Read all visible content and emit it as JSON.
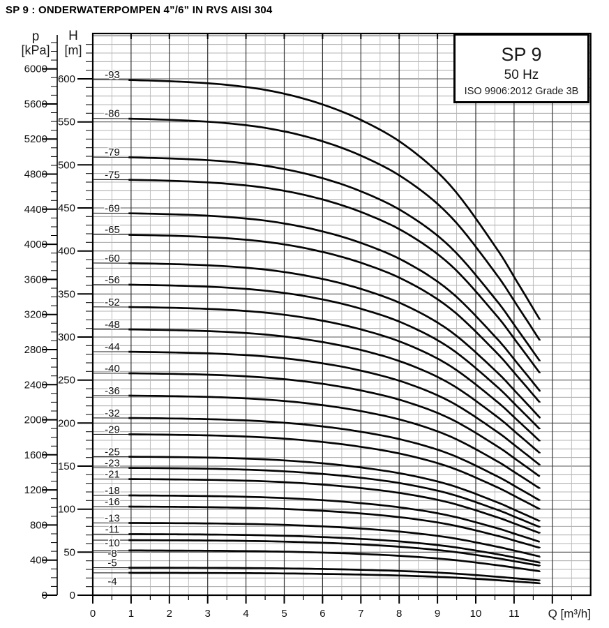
{
  "page_title": "SP 9 : ONDERWATERPOMPEN 4”/6” IN RVS AISI 304",
  "legend": {
    "model": "SP 9",
    "frequency": "50 Hz",
    "standard": "ISO 9906:2012 Grade 3B"
  },
  "axes": {
    "pressure": {
      "symbol": "p",
      "unit": "[kPa]",
      "labeled_ticks": [
        6000,
        5600,
        5200,
        4800,
        4400,
        4000,
        3600,
        3200,
        2800,
        2400,
        2000,
        1600,
        1200,
        800,
        400,
        0
      ],
      "minor_step_kpa": 100
    },
    "head": {
      "symbol": "H",
      "unit": "[m]",
      "labeled_ticks": [
        600,
        550,
        500,
        450,
        400,
        350,
        300,
        250,
        200,
        150,
        100,
        50,
        0
      ],
      "minor_step_m": 10
    },
    "flow": {
      "label": "Q [m³/h]",
      "labeled_ticks": [
        0,
        1,
        2,
        3,
        4,
        5,
        6,
        7,
        8,
        9,
        10,
        11
      ],
      "minor_step": 0.5,
      "axis_max": 13
    }
  },
  "chart_data": {
    "type": "line",
    "title": "SP 9 pump performance curves, 50 Hz, ISO 9906:2012 Grade 3B",
    "xlabel": "Q [m³/h]",
    "ylabel_left_outer": "p [kPa]",
    "ylabel_left_inner": "H [m]",
    "x_range": [
      0,
      13
    ],
    "h_range_m": [
      0,
      652
    ],
    "grid": {
      "h_minor_step_m": 10,
      "h_major_step_m": 50,
      "v_minor_step": 0.5,
      "v_major_step": 1,
      "grid_on": true
    },
    "legend_position": "top-right",
    "curve_color": "#050505",
    "kpa_per_meter_head": 9.81,
    "thin_segment_q_end_m3h": 0.95,
    "curve_shape_normalized": {
      "q_rel": [
        0,
        0.08,
        0.2,
        0.3,
        0.4,
        0.5,
        0.6,
        0.7,
        0.8,
        0.9,
        0.95,
        1.0
      ],
      "head_rel": [
        1.0,
        0.9995,
        0.996,
        0.99,
        0.978,
        0.956,
        0.922,
        0.872,
        0.795,
        0.677,
        0.607,
        0.535
      ]
    },
    "series": [
      {
        "label": "-93",
        "stages": 93,
        "shutoff_head_m": 599,
        "end_q_m3h": 11.67,
        "end_head_m": 320
      },
      {
        "label": "-86",
        "stages": 86,
        "shutoff_head_m": 554,
        "end_q_m3h": 11.67,
        "end_head_m": 296
      },
      {
        "label": "-79",
        "stages": 79,
        "shutoff_head_m": 509,
        "end_q_m3h": 11.67,
        "end_head_m": 272
      },
      {
        "label": "-75",
        "stages": 75,
        "shutoff_head_m": 483,
        "end_q_m3h": 11.67,
        "end_head_m": 258
      },
      {
        "label": "-69",
        "stages": 69,
        "shutoff_head_m": 444,
        "end_q_m3h": 11.67,
        "end_head_m": 238
      },
      {
        "label": "-65",
        "stages": 65,
        "shutoff_head_m": 419,
        "end_q_m3h": 11.67,
        "end_head_m": 224
      },
      {
        "label": "-60",
        "stages": 60,
        "shutoff_head_m": 386,
        "end_q_m3h": 11.67,
        "end_head_m": 207
      },
      {
        "label": "-56",
        "stages": 56,
        "shutoff_head_m": 361,
        "end_q_m3h": 11.67,
        "end_head_m": 193
      },
      {
        "label": "-52",
        "stages": 52,
        "shutoff_head_m": 335,
        "end_q_m3h": 11.67,
        "end_head_m": 179
      },
      {
        "label": "-48",
        "stages": 48,
        "shutoff_head_m": 309,
        "end_q_m3h": 11.67,
        "end_head_m": 165
      },
      {
        "label": "-44",
        "stages": 44,
        "shutoff_head_m": 283,
        "end_q_m3h": 11.67,
        "end_head_m": 151
      },
      {
        "label": "-40",
        "stages": 40,
        "shutoff_head_m": 258,
        "end_q_m3h": 11.67,
        "end_head_m": 138
      },
      {
        "label": "-36",
        "stages": 36,
        "shutoff_head_m": 232,
        "end_q_m3h": 11.67,
        "end_head_m": 124
      },
      {
        "label": "-32",
        "stages": 32,
        "shutoff_head_m": 206,
        "end_q_m3h": 11.67,
        "end_head_m": 110
      },
      {
        "label": "-29",
        "stages": 29,
        "shutoff_head_m": 187,
        "end_q_m3h": 11.67,
        "end_head_m": 100
      },
      {
        "label": "-25",
        "stages": 25,
        "shutoff_head_m": 161,
        "end_q_m3h": 11.67,
        "end_head_m": 86
      },
      {
        "label": "-23",
        "stages": 23,
        "shutoff_head_m": 148,
        "end_q_m3h": 11.67,
        "end_head_m": 79
      },
      {
        "label": "-21",
        "stages": 21,
        "shutoff_head_m": 135,
        "end_q_m3h": 11.67,
        "end_head_m": 72
      },
      {
        "label": "-18",
        "stages": 18,
        "shutoff_head_m": 116,
        "end_q_m3h": 11.67,
        "end_head_m": 62
      },
      {
        "label": "-16",
        "stages": 16,
        "shutoff_head_m": 103,
        "end_q_m3h": 11.67,
        "end_head_m": 55
      },
      {
        "label": "-13",
        "stages": 13,
        "shutoff_head_m": 84,
        "end_q_m3h": 11.67,
        "end_head_m": 45
      },
      {
        "label": "-11",
        "stages": 11,
        "shutoff_head_m": 71,
        "end_q_m3h": 11.67,
        "end_head_m": 38
      },
      {
        "label": "-10",
        "stages": 10,
        "shutoff_head_m": 64,
        "end_q_m3h": 11.67,
        "end_head_m": 34
      },
      {
        "label": "-8",
        "stages": 8,
        "shutoff_head_m": 52,
        "end_q_m3h": 11.67,
        "end_head_m": 28
      },
      {
        "label": "-5",
        "stages": 5,
        "shutoff_head_m": 32,
        "end_q_m3h": 11.67,
        "end_head_m": 17
      },
      {
        "label": "-4",
        "stages": 4,
        "shutoff_head_m": 26,
        "end_q_m3h": 11.67,
        "end_head_m": 14
      }
    ]
  }
}
